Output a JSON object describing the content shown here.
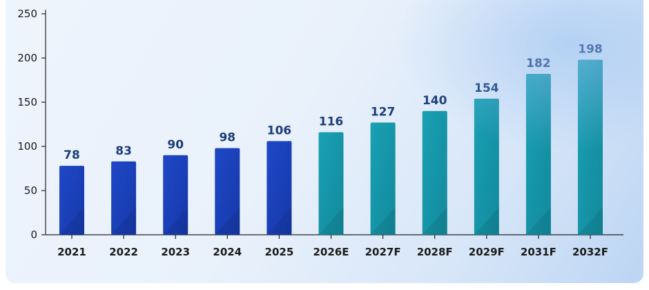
{
  "colors": {
    "actual_bar": "#1f48c8",
    "forecast_bar": "#1aa0b4",
    "value_label": "#1c3d7a",
    "axis": "#222222"
  },
  "chart_data": {
    "type": "bar",
    "categories": [
      "2021",
      "2022",
      "2023",
      "2024",
      "2025",
      "2026E",
      "2027F",
      "2028F",
      "2029F",
      "2031F",
      "2032F"
    ],
    "values": [
      78,
      83,
      90,
      98,
      106,
      116,
      127,
      140,
      154,
      182,
      198
    ],
    "value_labels": [
      "78",
      "83",
      "90",
      "98",
      "106",
      "116",
      "127",
      "140",
      "154",
      "182",
      "198"
    ],
    "bar_group": [
      "actual",
      "actual",
      "actual",
      "actual",
      "actual",
      "forecast",
      "forecast",
      "forecast",
      "forecast",
      "forecast",
      "forecast"
    ],
    "title": "",
    "xlabel": "",
    "ylabel": "",
    "ylim": [
      0,
      250
    ],
    "yticks": [
      0,
      50,
      100,
      150,
      200,
      250
    ],
    "ytick_labels": [
      "0",
      "50",
      "100",
      "150",
      "200",
      "250"
    ],
    "grid": false,
    "legend": "none"
  }
}
